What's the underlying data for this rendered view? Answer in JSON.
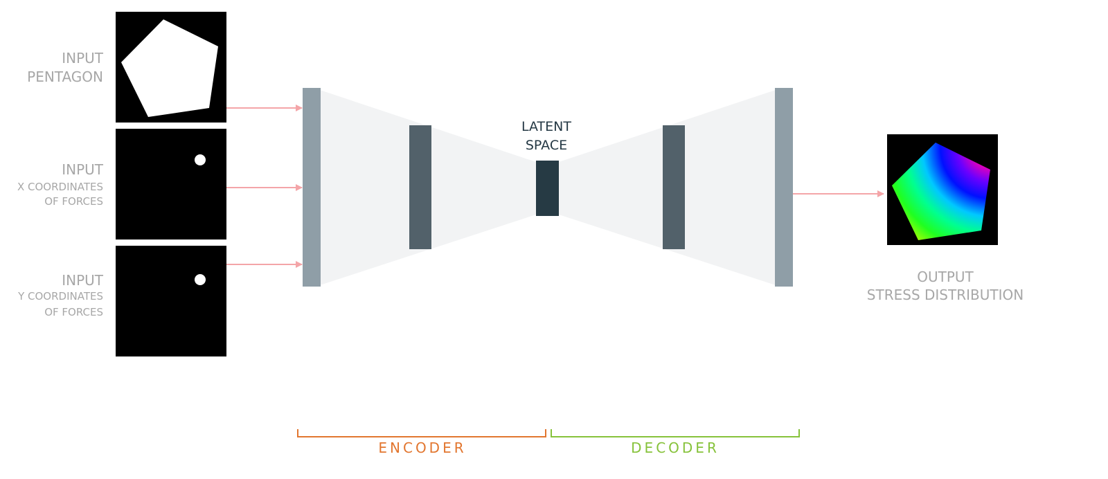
{
  "inputs": {
    "pentagon": {
      "line1": "INPUT",
      "line2": "PENTAGON"
    },
    "x_forces": {
      "line1": "INPUT",
      "line2": "X COORDINATES",
      "line3": "OF FORCES"
    },
    "y_forces": {
      "line1": "INPUT",
      "line2": "Y COORDINATES",
      "line3": "OF FORCES"
    }
  },
  "latent": {
    "line1": "LATENT",
    "line2": "SPACE"
  },
  "output": {
    "line1": "OUTPUT",
    "line2": "STRESS DISTRIBUTION"
  },
  "encoder_label": "ENCODER",
  "decoder_label": "DECODER",
  "colors": {
    "arrow": "#f4a5a8",
    "outer_layer": "#8f9ea7",
    "middle_layer": "#52616a",
    "latent_block": "#263a44",
    "funnel": "#f2f3f4",
    "encoder": "#e2762f",
    "decoder": "#86c23a",
    "label": "#a7a7a7"
  }
}
